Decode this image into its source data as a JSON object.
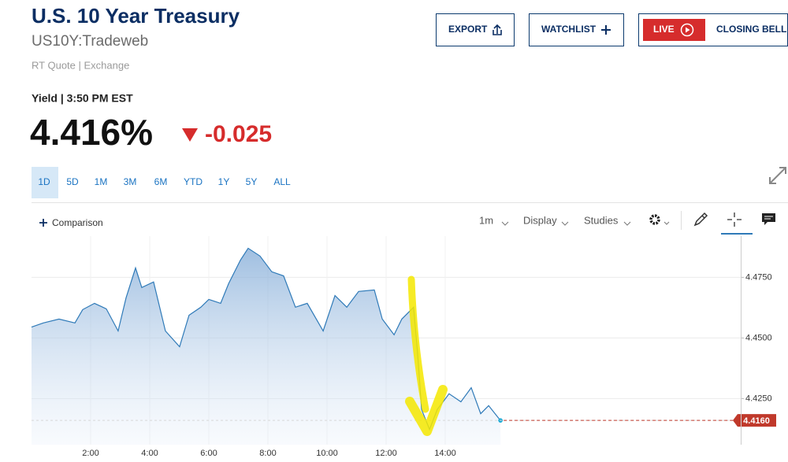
{
  "header": {
    "title": "U.S. 10 Year Treasury",
    "symbol": "US10Y:Tradeweb",
    "source": "RT Quote | Exchange"
  },
  "buttons": {
    "export": "EXPORT",
    "watchlist": "WATCHLIST",
    "live": "LIVE",
    "closing_bell": "CLOSING BELL"
  },
  "quote": {
    "label": "Yield | 3:50 PM EST",
    "price": "4.416%",
    "change": "-0.025"
  },
  "ranges": [
    "1D",
    "5D",
    "1M",
    "3M",
    "6M",
    "YTD",
    "1Y",
    "5Y",
    "ALL"
  ],
  "toolbar": {
    "comparison": "Comparison",
    "interval": "1m",
    "display": "Display",
    "studies": "Studies"
  },
  "chart_data": {
    "type": "area",
    "color": "#2f7ab8",
    "x": [
      0,
      0.4,
      0.93,
      1.47,
      1.73,
      2.13,
      2.53,
      2.93,
      3.2,
      3.52,
      3.73,
      4.13,
      4.53,
      5.01,
      5.33,
      5.73,
      6,
      6.4,
      6.67,
      7.07,
      7.33,
      7.73,
      8.13,
      8.53,
      8.93,
      9.33,
      9.87,
      10.27,
      10.67,
      11.07,
      11.6,
      11.87,
      12.27,
      12.53,
      12.93,
      13.07,
      13.2,
      13.47,
      13.73,
      14.13,
      14.53,
      14.88,
      15.2,
      15.47,
      15.87
    ],
    "values": [
      4.4545,
      4.4562,
      4.4578,
      4.4562,
      4.4617,
      4.4643,
      4.462,
      4.4529,
      4.4666,
      4.4789,
      4.4708,
      4.4731,
      4.4529,
      4.4464,
      4.4594,
      4.4627,
      4.4659,
      4.4643,
      4.4724,
      4.4821,
      4.487,
      4.4838,
      4.4773,
      4.4756,
      4.4627,
      4.4643,
      4.4529,
      4.4675,
      4.4627,
      4.4692,
      4.4698,
      4.4578,
      4.4513,
      4.4578,
      4.4627,
      4.4432,
      4.4205,
      4.4123,
      4.4205,
      4.427,
      4.4237,
      4.4295,
      4.4188,
      4.4221,
      4.416
    ],
    "xlim": [
      0,
      24
    ],
    "xticks": [
      {
        "value": 2,
        "label": "2:00"
      },
      {
        "value": 4,
        "label": "4:00"
      },
      {
        "value": 6,
        "label": "6:00"
      },
      {
        "value": 8,
        "label": "8:00"
      },
      {
        "value": 10,
        "label": "10:00"
      },
      {
        "value": 12,
        "label": "12:00"
      },
      {
        "value": 14,
        "label": "14:00"
      }
    ],
    "ylim": [
      4.406,
      4.492
    ],
    "yticks": [
      {
        "value": 4.425,
        "label": "4.4250"
      },
      {
        "value": 4.45,
        "label": "4.4500"
      },
      {
        "value": 4.475,
        "label": "4.4750"
      }
    ],
    "last_price": {
      "value": 4.416,
      "label": "4.4160",
      "color": "#c0392b"
    },
    "grid": true
  }
}
